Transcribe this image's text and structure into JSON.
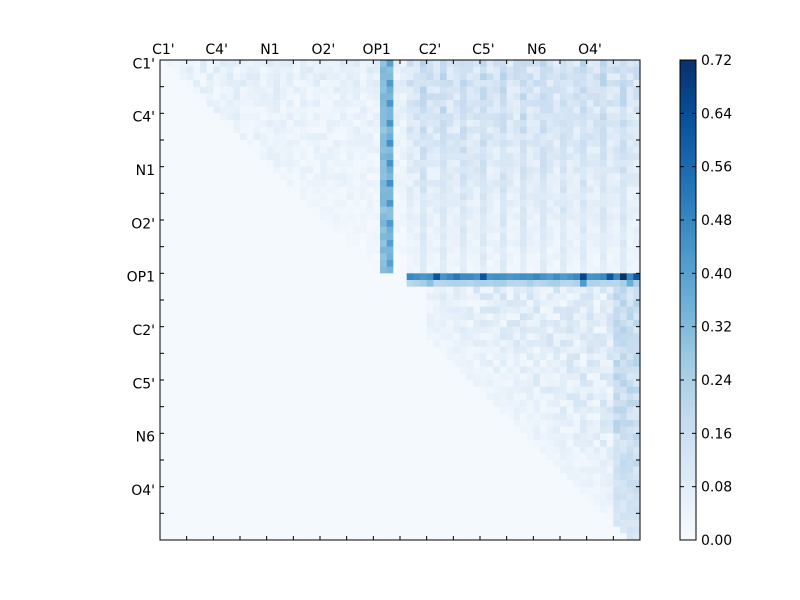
{
  "chart_data": {
    "type": "heatmap",
    "title": "",
    "xlabel": "",
    "ylabel": "",
    "grid": false,
    "shape": [
      72,
      72
    ],
    "x_tick_labels": [
      "C1'",
      "C4'",
      "N1",
      "O2'",
      "OP1",
      "C2'",
      "C5'",
      "N6",
      "O4'"
    ],
    "y_tick_labels": [
      "C1'",
      "C4'",
      "N1",
      "O2'",
      "OP1",
      "C2'",
      "C5'",
      "N6",
      "O4'"
    ],
    "tick_label_indices": [
      0,
      8,
      16,
      24,
      32,
      40,
      48,
      56,
      64
    ],
    "colormap": "Blues",
    "vmin": 0.0,
    "vmax": 0.72,
    "colorbar_ticks": [
      "0.00",
      "0.08",
      "0.16",
      "0.24",
      "0.32",
      "0.40",
      "0.48",
      "0.56",
      "0.64",
      "0.72"
    ],
    "features": {
      "column_op1": {
        "col": 33,
        "rows_to": 31,
        "value": 0.28
      },
      "column_op1_peak": {
        "col": 34,
        "rows_to": 31,
        "value": 0.4
      },
      "row_op1": {
        "row": 32,
        "cols_from": 37,
        "value": 0.42,
        "peaks": [
          [
            41,
            0.62
          ],
          [
            44,
            0.52
          ],
          [
            48,
            0.62
          ],
          [
            63,
            0.66
          ],
          [
            67,
            0.62
          ],
          [
            69,
            0.72
          ],
          [
            71,
            0.62
          ]
        ]
      },
      "row_op1_below": {
        "row": 33,
        "cols_from": 37,
        "value": 0.2,
        "peaks": [
          [
            40,
            0.3
          ],
          [
            63,
            0.42
          ],
          [
            70,
            0.36
          ]
        ]
      },
      "upper_band_value_range": [
        0.04,
        0.22
      ],
      "lower_right_value_range": [
        0.0,
        0.2
      ]
    }
  }
}
